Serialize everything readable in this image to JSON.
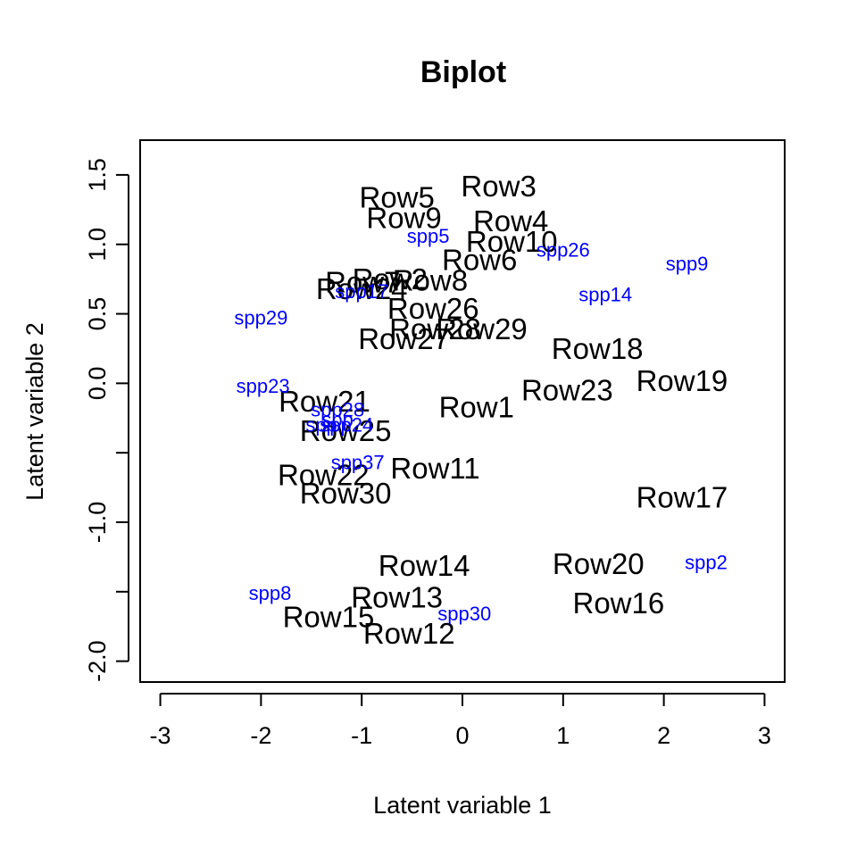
{
  "chart_data": {
    "type": "scatter",
    "title": "Biplot",
    "xlabel": "Latent variable 1",
    "ylabel": "Latent variable 2",
    "xlim": [
      -3.2,
      3.2
    ],
    "ylim": [
      -2.15,
      1.75
    ],
    "x_ticks": [
      -3,
      -2,
      -1,
      0,
      1,
      2,
      3
    ],
    "x_tick_labels": [
      "-3",
      "-2",
      "-1",
      "0",
      "1",
      "2",
      "3"
    ],
    "y_ticks": [
      -2.0,
      -1.5,
      -1.0,
      -0.5,
      0.0,
      0.5,
      1.0,
      1.5
    ],
    "y_tick_labels": [
      "-2.0",
      "",
      "-1.0",
      "",
      "0.0",
      "0.5",
      "1.0",
      "1.5"
    ],
    "grid": false,
    "legend": "none",
    "series": [
      {
        "color": "#000000",
        "points": [
          {
            "label": "Row1",
            "x": 0.14,
            "y": -0.17
          },
          {
            "label": "Row2",
            "x": -0.72,
            "y": 0.75
          },
          {
            "label": "Row3",
            "x": 0.36,
            "y": 1.42
          },
          {
            "label": "Row4",
            "x": 0.48,
            "y": 1.17
          },
          {
            "label": "Row5",
            "x": -0.65,
            "y": 1.34
          },
          {
            "label": "Row6",
            "x": 0.17,
            "y": 0.89
          },
          {
            "label": "Row7",
            "x": -0.99,
            "y": 0.73
          },
          {
            "label": "Row8",
            "x": -0.32,
            "y": 0.74
          },
          {
            "label": "Row9",
            "x": -0.58,
            "y": 1.19
          },
          {
            "label": "Row10",
            "x": 0.49,
            "y": 1.02
          },
          {
            "label": "Row11",
            "x": -0.27,
            "y": -0.61
          },
          {
            "label": "Row12",
            "x": -0.53,
            "y": -1.8
          },
          {
            "label": "Row13",
            "x": -0.65,
            "y": -1.54
          },
          {
            "label": "Row14",
            "x": -0.38,
            "y": -1.31
          },
          {
            "label": "Row15",
            "x": -1.33,
            "y": -1.68
          },
          {
            "label": "Row16",
            "x": 1.55,
            "y": -1.58
          },
          {
            "label": "Row17",
            "x": 2.18,
            "y": -0.82
          },
          {
            "label": "Row18",
            "x": 1.34,
            "y": 0.25
          },
          {
            "label": "Row19",
            "x": 2.18,
            "y": 0.02
          },
          {
            "label": "Row20",
            "x": 1.35,
            "y": -1.3
          },
          {
            "label": "Row21",
            "x": -1.37,
            "y": -0.13
          },
          {
            "label": "Row22",
            "x": -1.38,
            "y": -0.66
          },
          {
            "label": "Row23",
            "x": 1.04,
            "y": -0.05
          },
          {
            "label": "Row24",
            "x": -1.0,
            "y": 0.68
          },
          {
            "label": "Row25",
            "x": -1.16,
            "y": -0.34
          },
          {
            "label": "Row26",
            "x": -0.29,
            "y": 0.54
          },
          {
            "label": "Row27",
            "x": -0.58,
            "y": 0.32
          },
          {
            "label": "Row28",
            "x": -0.27,
            "y": 0.39
          },
          {
            "label": "Row29",
            "x": 0.19,
            "y": 0.39
          },
          {
            "label": "Row30",
            "x": -1.16,
            "y": -0.79
          }
        ]
      },
      {
        "color": "#0000ff",
        "points": [
          {
            "label": "spp2",
            "x": 2.42,
            "y": -1.29
          },
          {
            "label": "spp5",
            "x": -0.34,
            "y": 1.06
          },
          {
            "label": "spp8",
            "x": -1.91,
            "y": -1.51
          },
          {
            "label": "spp9",
            "x": 2.23,
            "y": 0.86
          },
          {
            "label": "spp14",
            "x": 1.42,
            "y": 0.64
          },
          {
            "label": "spp17",
            "x": -1.0,
            "y": 0.66
          },
          {
            "label": "spp23",
            "x": -1.98,
            "y": -0.02
          },
          {
            "label": "spp24",
            "x": -1.15,
            "y": -0.3
          },
          {
            "label": "spp26",
            "x": 1.0,
            "y": 0.96
          },
          {
            "label": "spp28",
            "x": -1.24,
            "y": -0.19
          },
          {
            "label": "spp30",
            "x": 0.02,
            "y": -1.66
          },
          {
            "label": "spp37",
            "x": -1.04,
            "y": -0.57
          },
          {
            "label": "spp29",
            "x": -2.0,
            "y": 0.47
          },
          {
            "label": "spp",
            "x": -1.24,
            "y": -0.26
          },
          {
            "label": "spp",
            "x": -1.4,
            "y": -0.3
          }
        ]
      }
    ]
  }
}
